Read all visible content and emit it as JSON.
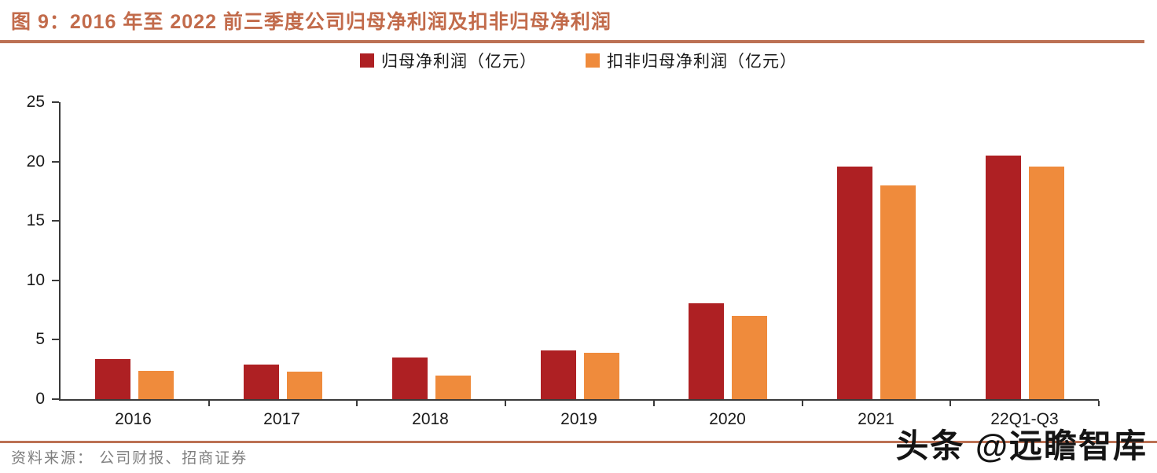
{
  "title": "图 9：2016 年至 2022 前三季度公司归母净利润及扣非归母净利润",
  "source_note": "资料来源：  公司财报、招商证券",
  "watermark": "头条 @远瞻智库",
  "colors": {
    "accent_rule": "#BC7154",
    "title_text": "#C26B4B",
    "axis": "#3a3a3a",
    "source_text": "#7f7f7f",
    "series1": "#AE2023",
    "series2": "#EF8B3C"
  },
  "chart_data": {
    "type": "bar",
    "categories": [
      "2016",
      "2017",
      "2018",
      "2019",
      "2020",
      "2021",
      "22Q1-Q3"
    ],
    "series": [
      {
        "name": "归母净利润（亿元）",
        "color": "#AE2023",
        "values": [
          3.4,
          2.9,
          3.5,
          4.1,
          8.1,
          19.6,
          20.5
        ]
      },
      {
        "name": "扣非归母净利润（亿元）",
        "color": "#EF8B3C",
        "values": [
          2.4,
          2.3,
          2.0,
          3.9,
          7.0,
          18.0,
          19.6
        ]
      }
    ],
    "ylim": [
      0,
      25
    ],
    "yticks": [
      0,
      5,
      10,
      15,
      20,
      25
    ],
    "xlabel": "",
    "ylabel": "",
    "grid": false,
    "legend_position": "top-center"
  }
}
